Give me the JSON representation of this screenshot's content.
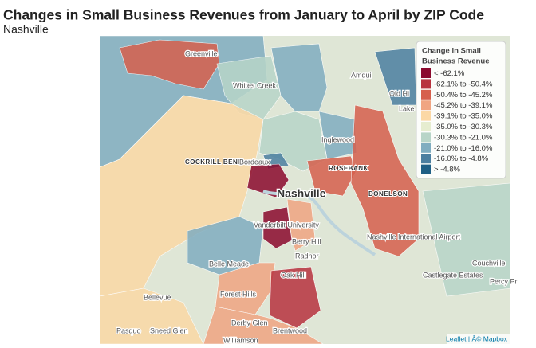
{
  "header": {
    "title": "Changes in Small Business Revenues from January to April by ZIP Code",
    "subtitle": "Nashville"
  },
  "legend": {
    "title": [
      "Change in Small",
      "Business Revenue"
    ],
    "items": [
      {
        "label": "< -62.1%",
        "color": "#8b0a2e"
      },
      {
        "label": "-62.1% to -50.4%",
        "color": "#b8333f"
      },
      {
        "label": "-50.4% to -45.2%",
        "color": "#d6604d"
      },
      {
        "label": "-45.2% to -39.1%",
        "color": "#f0a582"
      },
      {
        "label": "-39.1% to -35.0%",
        "color": "#fbd8a5"
      },
      {
        "label": "-35.0% to -30.3%",
        "color": "#e6edd0"
      },
      {
        "label": "-30.3% to -21.0%",
        "color": "#b8d5c8"
      },
      {
        "label": "-21.0% to -16.0%",
        "color": "#80adc0"
      },
      {
        "label": "-16.0% to -4.8%",
        "color": "#4c7fa0"
      },
      {
        "label": "> -4.8%",
        "color": "#1f5f85"
      }
    ]
  },
  "place_labels": [
    "Greenville",
    "Whites Creek",
    "Amqui",
    "Old Hi",
    "Lake",
    "Inglewood",
    "COCKRILL BEND",
    "Bordeaux",
    "ROSEBANK",
    "Nashville",
    "DONELSON",
    "Vanderbilt University",
    "Berry Hill",
    "Nashville International Airport",
    "Radnor",
    "Belle Meade",
    "Forest Hills",
    "Oak Hill",
    "Bellevue",
    "Castlegate Estates",
    "Couchville",
    "Percy Pri",
    "Pasquo",
    "Sneed Glen",
    "Derby Glen",
    "Brentwood",
    "Williamson"
  ],
  "attribution": "Leaflet | Â© Mapbox"
}
